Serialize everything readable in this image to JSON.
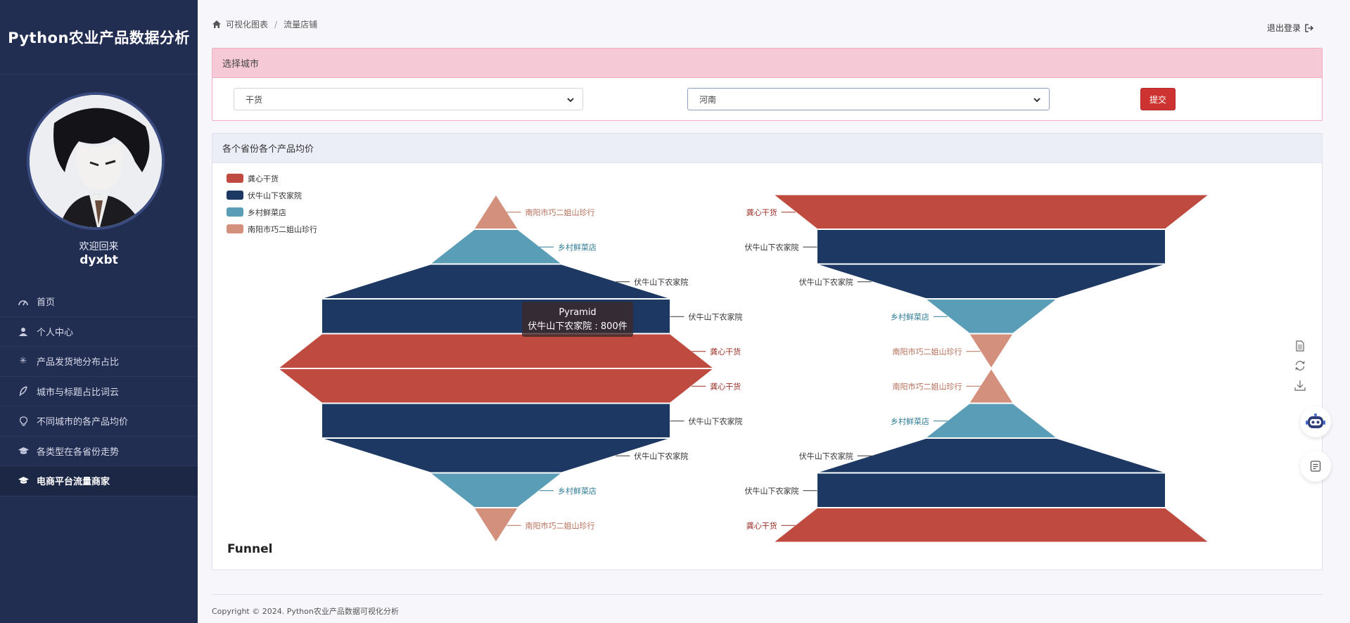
{
  "app": {
    "title": "Python农业产品数据分析"
  },
  "user": {
    "welcome": "欢迎回来",
    "name": "dyxbt"
  },
  "sidebar": {
    "items": [
      {
        "label": "首页",
        "icon": "dashboard-icon"
      },
      {
        "label": "个人中心",
        "icon": "user-icon"
      },
      {
        "label": "产品发货地分布占比",
        "icon": "asterisk-icon"
      },
      {
        "label": "城市与标题占比词云",
        "icon": "feather-icon"
      },
      {
        "label": "不同城市的各产品均价",
        "icon": "lightbulb-icon"
      },
      {
        "label": "各类型在各省份走势",
        "icon": "graduation-cap-icon"
      },
      {
        "label": "电商平台流量商家",
        "icon": "graduation-cap-icon"
      }
    ],
    "active_index": 6
  },
  "breadcrumb": {
    "home": "可视化图表",
    "current": "流量店铺"
  },
  "header": {
    "logout": "退出登录"
  },
  "filter": {
    "title": "选择城市",
    "select1_value": "干货",
    "select2_value": "河南",
    "submit_label": "提交"
  },
  "chart_card": {
    "title": "各个省份各个产品均价"
  },
  "colors": {
    "sidebar_bg": "#222d52",
    "accent_red": "#cc3331",
    "series": [
      "#bf4a3f",
      "#1d3963",
      "#5a9db7",
      "#d3907d"
    ]
  },
  "chart_data": {
    "type": "funnel",
    "legend": [
      "龚心干货",
      "伏牛山下农家院",
      "乡村鲜菜店",
      "南阳市巧二姐山珍行"
    ],
    "legend_position": "top-left",
    "unit": "件",
    "funnels": [
      {
        "name": "Pyramid",
        "layout": "pyramid-mirrored",
        "top_half": [
          {
            "name": "南阳市巧二姐山珍行",
            "color_index": 3
          },
          {
            "name": "乡村鲜菜店",
            "color_index": 2
          },
          {
            "name": "伏牛山下农家院",
            "color_index": 1
          },
          {
            "name": "伏牛山下农家院",
            "color_index": 1
          },
          {
            "name": "龚心干货",
            "color_index": 0
          }
        ],
        "bottom_half": [
          {
            "name": "龚心干货",
            "color_index": 0
          },
          {
            "name": "伏牛山下农家院",
            "color_index": 1
          },
          {
            "name": "伏牛山下农家院",
            "color_index": 1
          },
          {
            "name": "乡村鲜菜店",
            "color_index": 2
          },
          {
            "name": "南阳市巧二姐山珍行",
            "color_index": 3
          }
        ]
      },
      {
        "name": "Funnel",
        "layout": "hourglass",
        "top_half": [
          {
            "name": "龚心干货",
            "color_index": 0
          },
          {
            "name": "伏牛山下农家院",
            "color_index": 1
          },
          {
            "name": "伏牛山下农家院",
            "color_index": 1
          },
          {
            "name": "乡村鲜菜店",
            "color_index": 2
          },
          {
            "name": "南阳市巧二姐山珍行",
            "color_index": 3
          }
        ],
        "bottom_half": [
          {
            "name": "南阳市巧二姐山珍行",
            "color_index": 3
          },
          {
            "name": "乡村鲜菜店",
            "color_index": 2
          },
          {
            "name": "伏牛山下农家院",
            "color_index": 1
          },
          {
            "name": "伏牛山下农家院",
            "color_index": 1
          },
          {
            "name": "龚心干货",
            "color_index": 0
          }
        ]
      }
    ],
    "tooltip": {
      "title": "Pyramid",
      "item": "伏牛山下农家院",
      "value": 800,
      "text": "伏牛山下农家院 : 800件"
    },
    "annotation": "Funnel"
  },
  "footer": {
    "copyright": "Copyright © 2024. Python农业产品数据可视化分析"
  }
}
